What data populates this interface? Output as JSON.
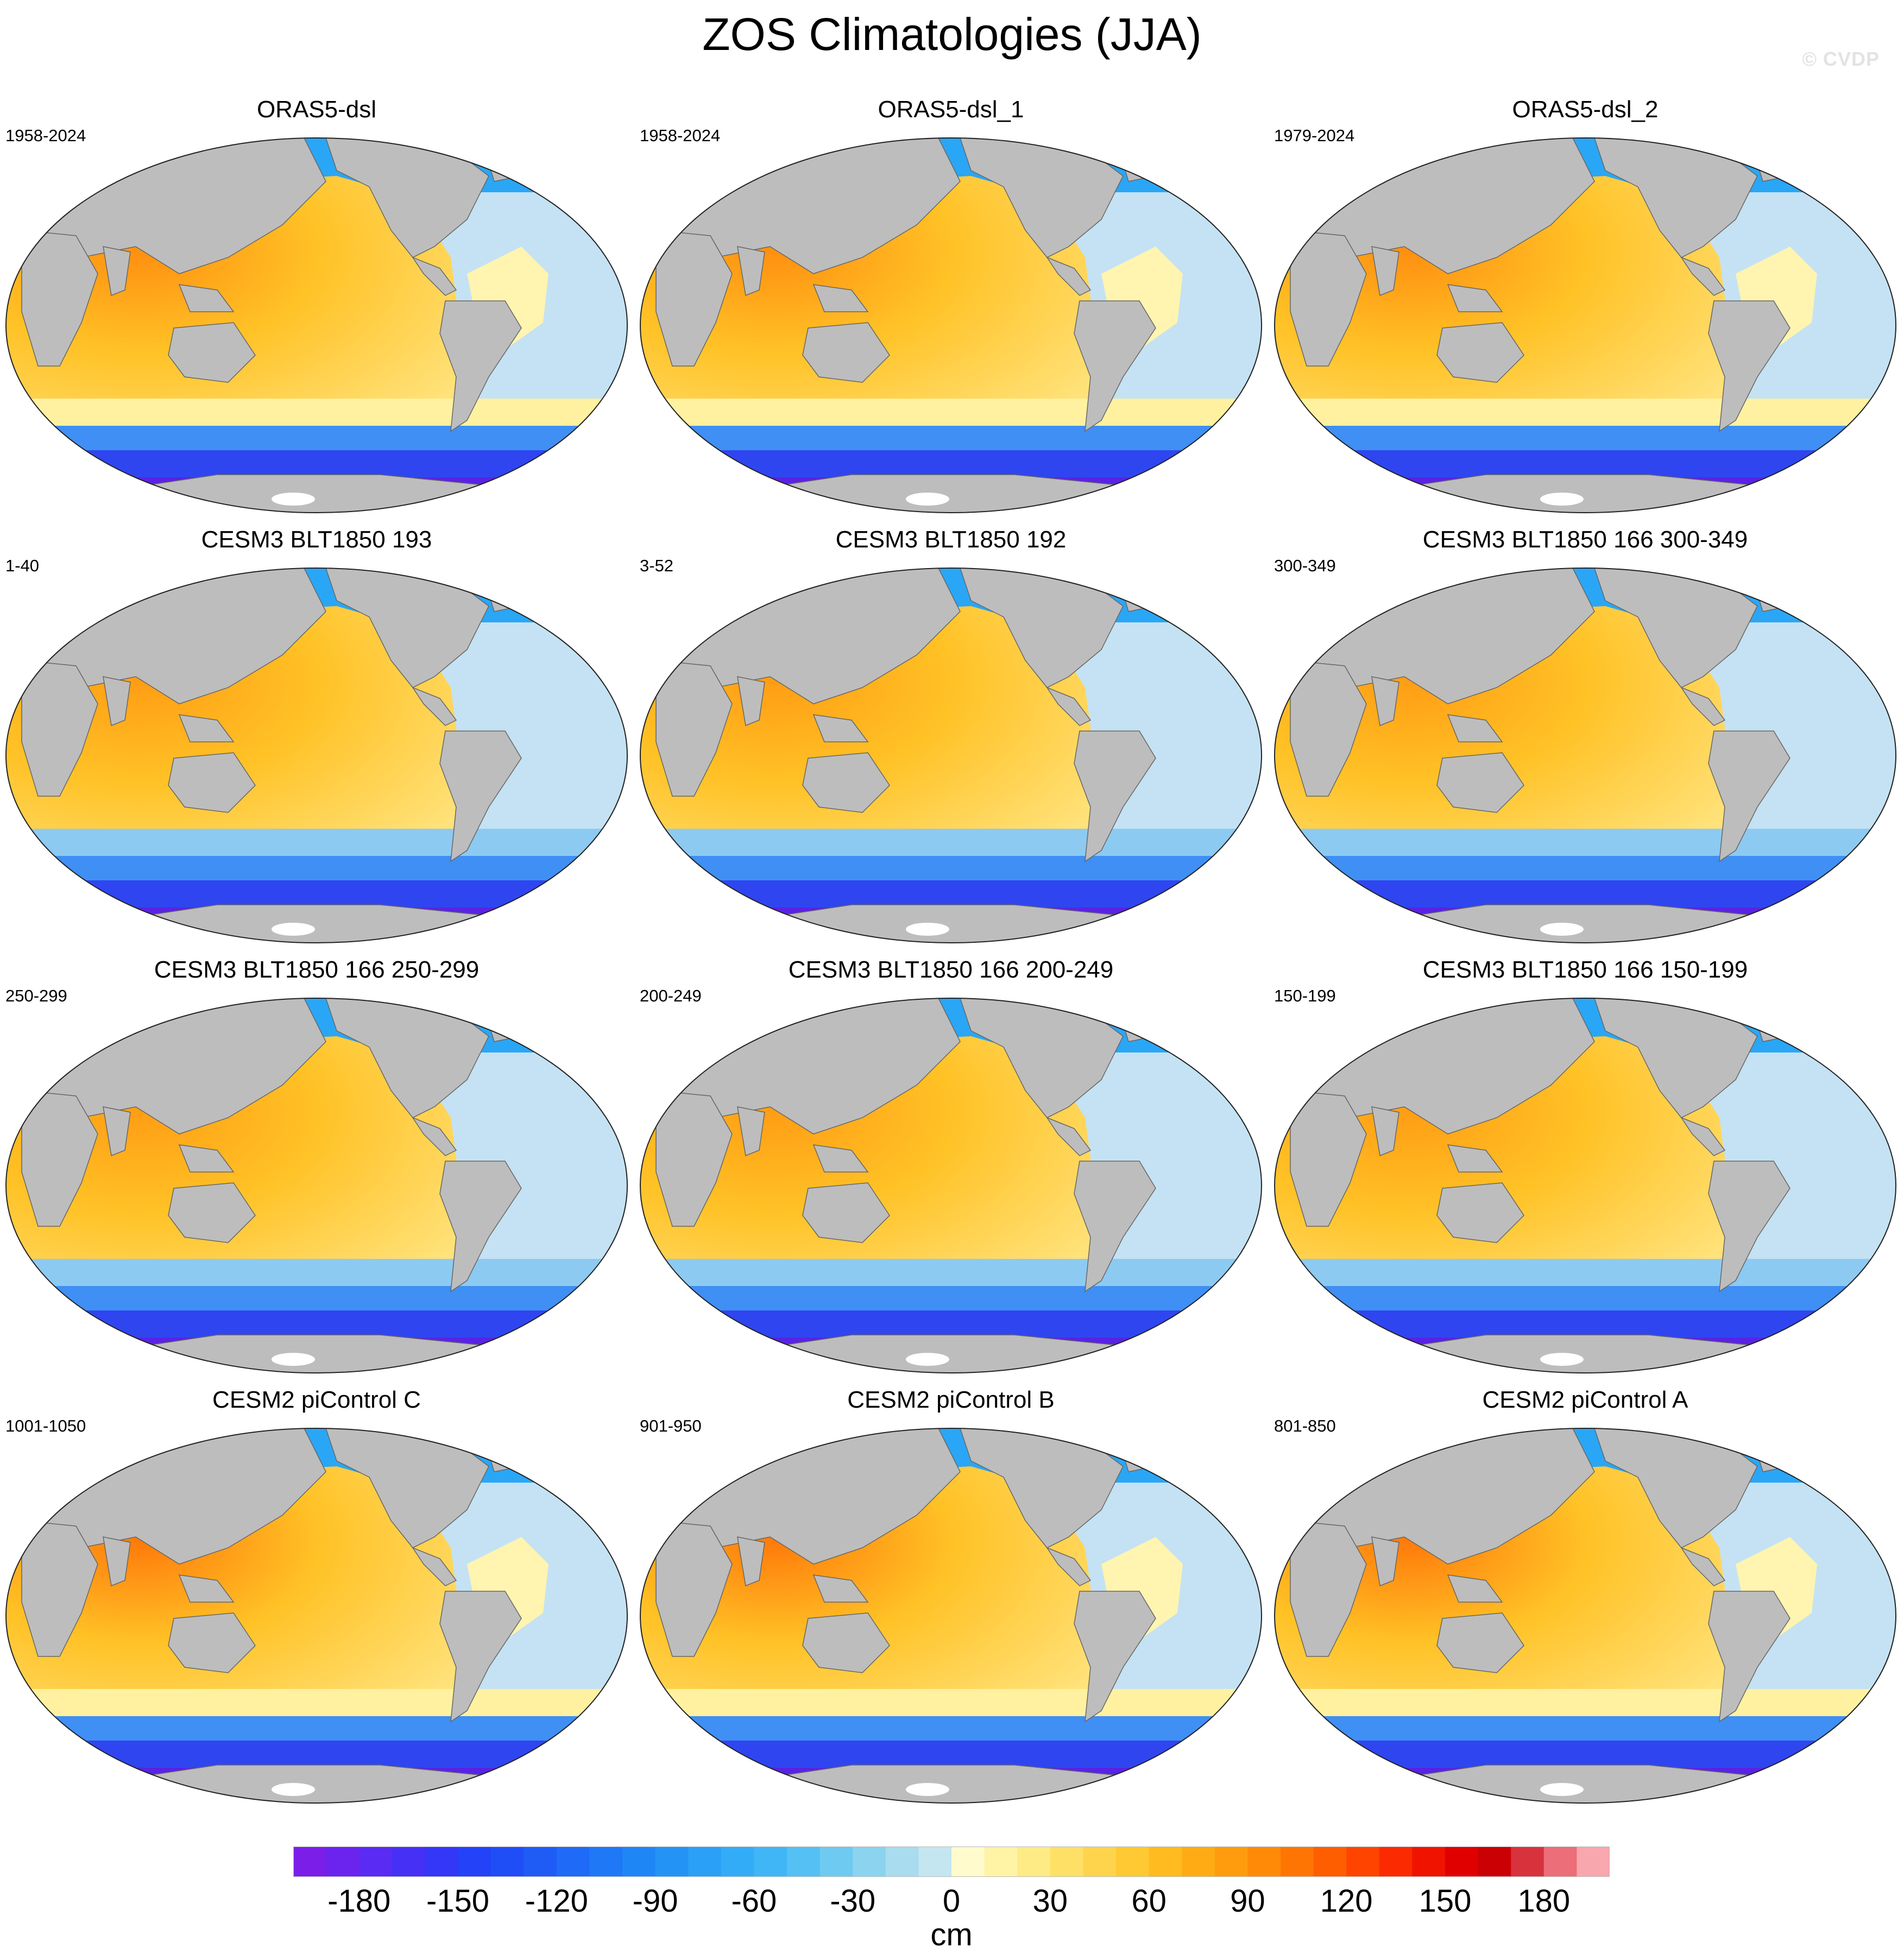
{
  "title": "ZOS Climatologies (JJA)",
  "watermark": "© CVDP",
  "panels": [
    {
      "title": "ORAS5-dsl",
      "period": "1958-2024",
      "style": "reanalysis"
    },
    {
      "title": "ORAS5-dsl_1",
      "period": "1958-2024",
      "style": "reanalysis"
    },
    {
      "title": "ORAS5-dsl_2",
      "period": "1979-2024",
      "style": "reanalysis"
    },
    {
      "title": "CESM3 BLT1850 193",
      "period": "1-40",
      "style": "cesm3"
    },
    {
      "title": "CESM3 BLT1850 192",
      "period": "3-52",
      "style": "cesm3"
    },
    {
      "title": "CESM3 BLT1850 166 300-349",
      "period": "300-349",
      "style": "cesm3"
    },
    {
      "title": "CESM3 BLT1850 166 250-299",
      "period": "250-299",
      "style": "cesm3"
    },
    {
      "title": "CESM3 BLT1850 166 200-249",
      "period": "200-249",
      "style": "cesm3"
    },
    {
      "title": "CESM3 BLT1850 166 150-199",
      "period": "150-199",
      "style": "cesm3"
    },
    {
      "title": "CESM2 piControl C",
      "period": "1001-1050",
      "style": "cesm2"
    },
    {
      "title": "CESM2 piControl B",
      "period": "901-950",
      "style": "cesm2"
    },
    {
      "title": "CESM2 piControl A",
      "period": "801-850",
      "style": "cesm2"
    }
  ],
  "colorbar": {
    "unit": "cm",
    "tick_labels": [
      "-180",
      "-150",
      "-120",
      "-90",
      "-60",
      "-30",
      "0",
      "30",
      "60",
      "90",
      "120",
      "150",
      "180"
    ],
    "range": [
      -200,
      200
    ],
    "step": 10,
    "colors": [
      "#7b1fe8",
      "#6a24ee",
      "#5a2bf2",
      "#4630f5",
      "#3437f7",
      "#2442f8",
      "#1f4ef7",
      "#1f5cf6",
      "#1f6af6",
      "#1f78f6",
      "#1f86f6",
      "#2394f6",
      "#2aa0f7",
      "#33acf7",
      "#40b6f6",
      "#55c0f3",
      "#6ecaf1",
      "#8bd3ef",
      "#a8dcee",
      "#c4e6f0",
      "#fffbcc",
      "#fff3a6",
      "#ffeb85",
      "#ffe066",
      "#ffd44d",
      "#ffc933",
      "#ffbb1f",
      "#ffac14",
      "#ff9c0d",
      "#ff8a08",
      "#ff7504",
      "#ff5e00",
      "#ff4400",
      "#fb2a00",
      "#f01300",
      "#e00000",
      "#ca0005",
      "#d8323c",
      "#ec6e78",
      "#f7a7ad"
    ]
  },
  "colors": {
    "land": "#bdbdbd",
    "ice": "#ffffff",
    "atlantic": "#c4e2f3",
    "pacific_warm": "#ffc226",
    "warm_pool": "#ff8a12",
    "southern_ocean": "#2f45f0",
    "antarctic": "#5a22e4",
    "arctic": "#2aa6f6"
  }
}
